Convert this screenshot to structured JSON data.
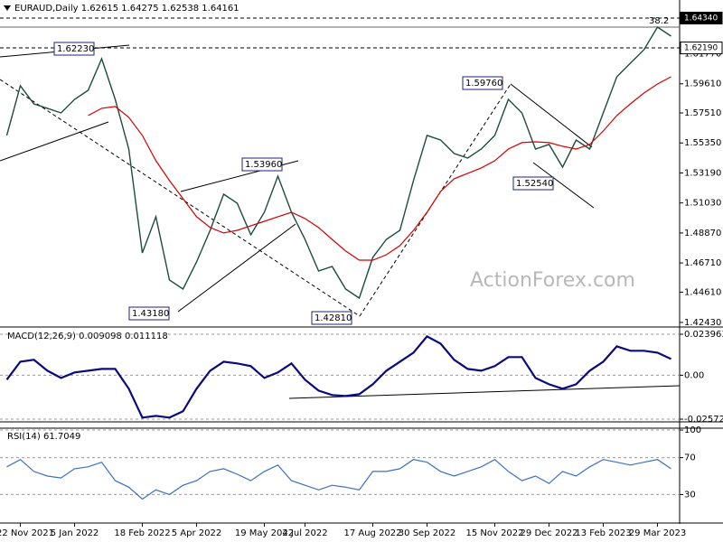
{
  "chart_data": [
    {
      "type": "line",
      "title": "EURAUD,Daily  1.62615 1.64275 1.62538 1.64161",
      "categories": [
        null,
        "22 Nov 2021",
        null,
        null,
        null,
        "5 Jan 2022",
        null,
        null,
        null,
        null,
        "18 Feb 2022",
        null,
        null,
        null,
        "5 Apr 2022",
        null,
        null,
        null,
        null,
        "19 May 2022",
        null,
        null,
        "4 Jul 2022",
        null,
        null,
        null,
        null,
        "17 Aug 2022",
        null,
        null,
        null,
        "30 Sep 2022",
        null,
        null,
        null,
        null,
        "15 Nov 2022",
        null,
        null,
        null,
        "29 Dec 2022",
        null,
        null,
        null,
        "13 Feb 2023",
        null,
        null,
        null,
        "29 Mar 2023",
        null
      ],
      "series": [
        {
          "color": "#1b4d3e",
          "values": [
            1.5589,
            1.5946,
            1.5816,
            1.5784,
            1.5751,
            1.5849,
            1.5914,
            1.6141,
            1.5849,
            1.5491,
            1.4743,
            1.5004,
            1.4548,
            1.4483,
            1.4678,
            1.4906,
            1.5166,
            1.5101,
            1.4874,
            1.5036,
            1.5296,
            1.5036,
            1.4841,
            1.4613,
            1.4646,
            1.4483,
            1.4418,
            1.4711,
            1.4841,
            1.4906,
            1.5264,
            1.5589,
            1.5556,
            1.5459,
            1.5426,
            1.5491,
            1.5589,
            1.5849,
            1.5751,
            1.5491,
            1.5524,
            1.5361,
            1.5556,
            1.5491,
            1.5751,
            1.6011,
            1.6109,
            1.6206,
            1.6369,
            1.6304
          ]
        },
        {
          "color": "#d40000",
          "values": [
            null,
            null,
            null,
            null,
            null,
            null,
            1.5732,
            1.5784,
            1.5797,
            1.5719,
            1.5589,
            1.5407,
            1.5264,
            1.5134,
            1.5004,
            1.4926,
            1.4887,
            1.4906,
            1.4939,
            1.4971,
            1.5004,
            1.5036,
            1.4991,
            1.4926,
            1.4841,
            1.4757,
            1.4691,
            1.4691,
            1.473,
            1.4796,
            1.4906,
            1.5036,
            1.5186,
            1.5277,
            1.5316,
            1.5355,
            1.5407,
            1.5491,
            1.5537,
            1.5543,
            1.5537,
            1.5511,
            1.5491,
            1.5524,
            1.5621,
            1.5732,
            1.5816,
            1.5894,
            1.5959,
            1.6011
          ]
        }
      ],
      "ylim": [
        1.421,
        1.6564
      ],
      "yticks": [
        {
          "value": 1.6177,
          "label": "1.61770"
        },
        {
          "value": 1.5961,
          "label": "1.59610"
        },
        {
          "value": 1.5751,
          "label": "1.57510"
        },
        {
          "value": 1.5535,
          "label": "1.55350"
        },
        {
          "value": 1.5319,
          "label": "1.53190"
        },
        {
          "value": 1.5103,
          "label": "1.51030"
        },
        {
          "value": 1.4887,
          "label": "1.48870"
        },
        {
          "value": 1.4671,
          "label": "1.46710"
        },
        {
          "value": 1.4461,
          "label": "1.44610"
        },
        {
          "value": 1.4243,
          "label": "1.42430"
        }
      ],
      "levels": [
        {
          "value": 1.6434,
          "label": "1.64340"
        },
        {
          "value": 1.6219,
          "label": "1.62190"
        }
      ],
      "annotations": [
        {
          "value": 1.6223,
          "label": "1.62230"
        },
        {
          "value": 1.5396,
          "label": "1.53960"
        },
        {
          "value": 1.4318,
          "label": "1.43180"
        },
        {
          "value": 1.4281,
          "label": "1.42810"
        },
        {
          "value": 1.5976,
          "label": "1.59760"
        },
        {
          "value": 1.5254,
          "label": "1.52540"
        }
      ],
      "fib_label": "38.2",
      "watermark": "ActionForex.com"
    },
    {
      "type": "line",
      "title": "MACD(12,26,9) 0.009098 0.011118",
      "series": [
        {
          "color": "#0a0a80",
          "values": [
            -0.0026,
            0.0079,
            0.009,
            0.0026,
            -0.0016,
            0.0016,
            0.0026,
            0.0037,
            0.0037,
            -0.0079,
            -0.0248,
            -0.0238,
            -0.0248,
            -0.0211,
            -0.0079,
            0.0026,
            0.0079,
            0.0069,
            0.0053,
            -0.0016,
            0.0016,
            0.0069,
            -0.0026,
            -0.009,
            -0.0116,
            -0.0122,
            -0.0111,
            -0.0053,
            0.0026,
            0.0079,
            0.0132,
            0.0227,
            0.0185,
            0.009,
            0.0037,
            0.0026,
            0.0053,
            0.0106,
            0.0106,
            -0.0016,
            -0.0053,
            -0.0079,
            -0.0053,
            0.0026,
            0.0079,
            0.0169,
            0.0143,
            0.0143,
            0.0132,
            0.0095
          ]
        }
      ],
      "ylim": [
        -0.0273,
        0.0282
      ],
      "yticks": [
        0.023963,
        {
          "value": 0,
          "label": "0.00"
        },
        -0.025726
      ]
    },
    {
      "type": "line",
      "title": "RSI(14) 61.7049",
      "series": [
        {
          "color": "#3a6fc4",
          "values": [
            60,
            68,
            55,
            50,
            48,
            58,
            60,
            65,
            45,
            38,
            25,
            35,
            30,
            40,
            45,
            55,
            58,
            52,
            45,
            55,
            62,
            45,
            40,
            35,
            40,
            38,
            35,
            55,
            55,
            58,
            68,
            65,
            55,
            50,
            55,
            60,
            68,
            55,
            45,
            50,
            42,
            55,
            50,
            60,
            68,
            65,
            62,
            65,
            68,
            58
          ]
        }
      ],
      "ylim": [
        0,
        102
      ],
      "yticks": [
        100,
        70,
        30
      ]
    }
  ]
}
